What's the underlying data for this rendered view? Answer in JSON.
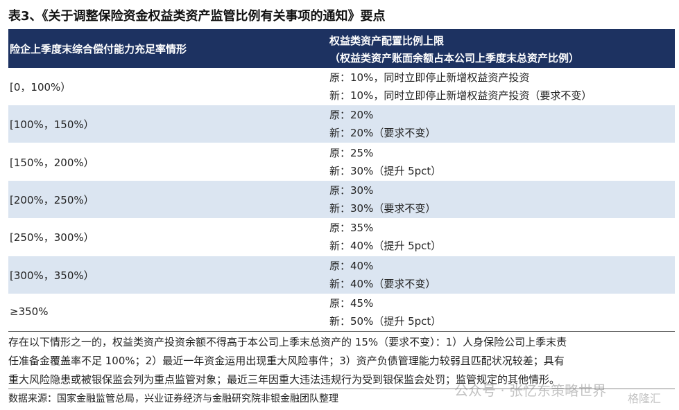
{
  "title": "表3、《关于调整保险资金权益类资产监管比例有关事项的通知》要点",
  "table": {
    "header": [
      "险企上季度末综合偿付能力充足率情形",
      "权益类资产配置比例上限",
      "（权益类资产账面余额占本公司上季度末总资产比例）"
    ],
    "rows": [
      [
        "[0，100%）",
        "原：10%，同时立即停止新增权益资产投资",
        "新：10%，同时立即停止新增权益资产投资（要求不变）"
      ],
      [
        "[100%，150%）",
        "原：20%",
        "新：20%（要求不变）"
      ],
      [
        "[150%，200%）",
        "原：25%",
        "新：30%（提升 5pct）"
      ],
      [
        "[200%，250%）",
        "原：30%",
        "新：30%（要求不变）"
      ],
      [
        "[250%，300%）",
        "原：35%",
        "新：40%（提升 5pct）"
      ],
      [
        "[300%，350%）",
        "原：40%",
        "新：40%（要求不变）"
      ],
      [
        "≥350%",
        "原：45%",
        "新：50%（提升 5pct）"
      ]
    ]
  },
  "note": [
    "存在以下情形之一的，权益类资产投资余额不得高于本公司上季末总资产的 15%（要求不变）：1）人身保险公司上季末责",
    "任准备金覆盖率不足 100%；2）最近一年资金运用出现重大风险事件；3）资产负债管理能力较弱且匹配状况较差；具有",
    "重大风险隐患或被银保监会列为重点监管对象；最近三年因重大违法违规行为受到银保监会处罚；监管规定的其他情形。"
  ],
  "source": "数据来源：国家金融监管总局，兴业证券经济与金融研究院非银金融团队整理",
  "watermark": [
    "公众号 · 张忆东策略世界",
    "格隆汇"
  ]
}
